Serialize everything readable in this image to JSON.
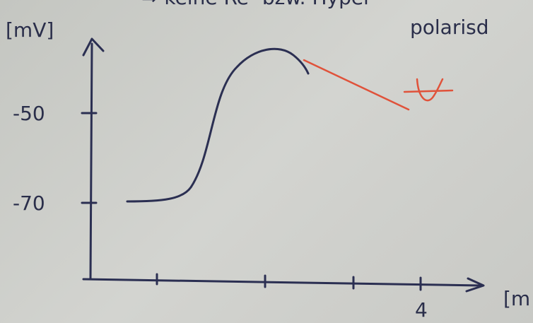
{
  "header": {
    "line1": "⇒ keine Re- bzw. Hyper",
    "line2": "polarisd"
  },
  "y_axis": {
    "unit": "[mV]",
    "ticks": [
      "-50",
      "-70"
    ]
  },
  "x_axis": {
    "unit": "[m",
    "ticks": [
      "4"
    ]
  }
}
